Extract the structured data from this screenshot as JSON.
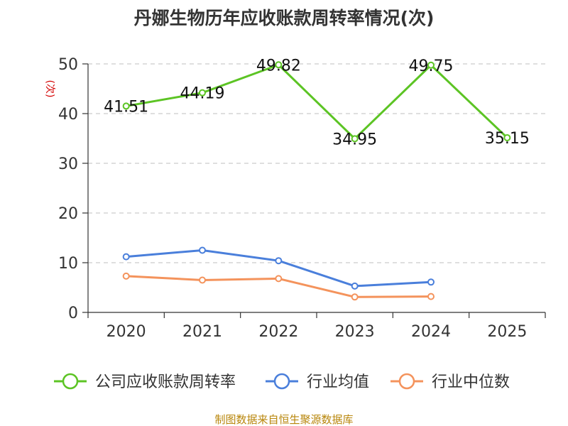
{
  "chart_data": {
    "type": "line",
    "title": "丹娜生物历年应收账款周转率情况(次)",
    "xlabel": "",
    "ylabel": "(次)",
    "categories": [
      "2020",
      "2021",
      "2022",
      "2023",
      "2024",
      "2025"
    ],
    "ylim": [
      0,
      50
    ],
    "yticks": [
      0,
      10,
      20,
      30,
      40,
      50
    ],
    "grid": true,
    "legend_position": "bottom",
    "series": [
      {
        "name": "公司应收账款周转率",
        "color": "#5cc424",
        "values": [
          41.51,
          44.19,
          49.82,
          34.95,
          49.75,
          35.15
        ],
        "labels": [
          "41.51",
          "44.19",
          "49.82",
          "34.95",
          "49.75",
          "35.15"
        ]
      },
      {
        "name": "行业均值",
        "color": "#4a7fdb",
        "values": [
          11.2,
          12.5,
          10.4,
          5.3,
          6.1,
          null
        ]
      },
      {
        "name": "行业中位数",
        "color": "#f4935c",
        "values": [
          7.3,
          6.5,
          6.8,
          3.1,
          3.2,
          null
        ]
      }
    ],
    "source": "制图数据来自恒生聚源数据库"
  }
}
